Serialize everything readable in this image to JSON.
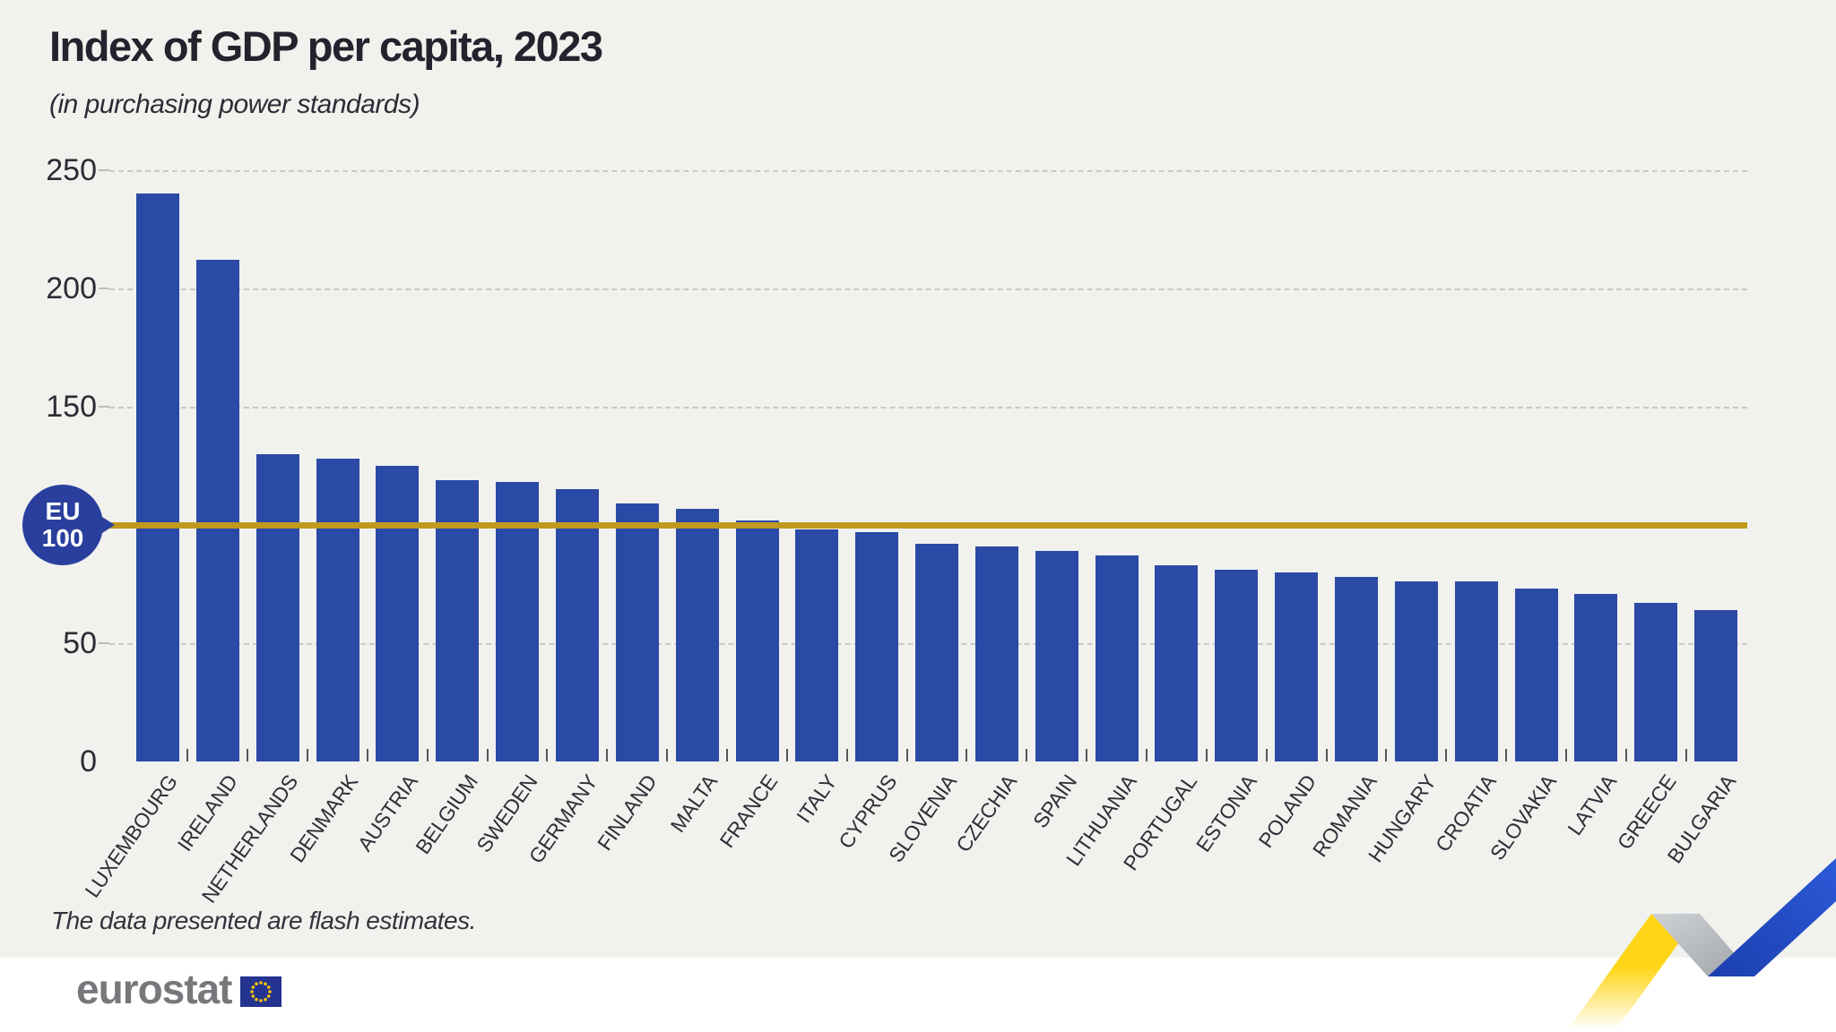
{
  "header": {
    "title": "Index of GDP per capita, 2023",
    "subtitle": "(in purchasing power standards)"
  },
  "chart_data": {
    "type": "bar",
    "title": "Index of GDP per capita, 2023",
    "subtitle": "(in purchasing power standards)",
    "xlabel": "",
    "ylabel": "",
    "ylim": [
      0,
      250
    ],
    "grid": true,
    "legend_position": "none",
    "yticks": [
      0,
      50,
      150,
      200,
      250
    ],
    "gridlines": [
      50,
      150,
      200,
      250
    ],
    "bar_color": "#2b4aa5",
    "categories": [
      "LUXEMBOURG",
      "IRELAND",
      "NETHERLANDS",
      "DENMARK",
      "AUSTRIA",
      "BELGIUM",
      "SWEDEN",
      "GERMANY",
      "FINLAND",
      "MALTA",
      "FRANCE",
      "ITALY",
      "CYPRUS",
      "SLOVENIA",
      "CZECHIA",
      "SPAIN",
      "LITHUANIA",
      "PORTUGAL",
      "ESTONIA",
      "POLAND",
      "ROMANIA",
      "HUNGARY",
      "CROATIA",
      "SLOVAKIA",
      "LATVIA",
      "GREECE",
      "BULGARIA"
    ],
    "values": [
      240,
      212,
      130,
      128,
      125,
      119,
      118,
      115,
      109,
      107,
      102,
      98,
      97,
      92,
      91,
      89,
      87,
      83,
      81,
      80,
      78,
      76,
      76,
      73,
      71,
      67,
      64
    ],
    "reference_line": {
      "value": 100,
      "label_line1": "EU",
      "label_line2": "100",
      "color": "#c09a1e",
      "bubble_color": "#2a3f9d"
    }
  },
  "note": "The data presented are flash estimates.",
  "footer": {
    "logo_text": "eurostat"
  },
  "colors": {
    "background": "#f1f1ee",
    "footer_background": "#ffffff",
    "bar": "#2b4aa5",
    "reference_gold": "#c09a1e",
    "ribbon_yellow": "#ffd517",
    "ribbon_gray": "#b6b9bd",
    "ribbon_blue": "#2450c8",
    "flag_blue": "#24338f",
    "flag_star_yellow": "#f7c700",
    "logo_gray": "#76787b"
  }
}
